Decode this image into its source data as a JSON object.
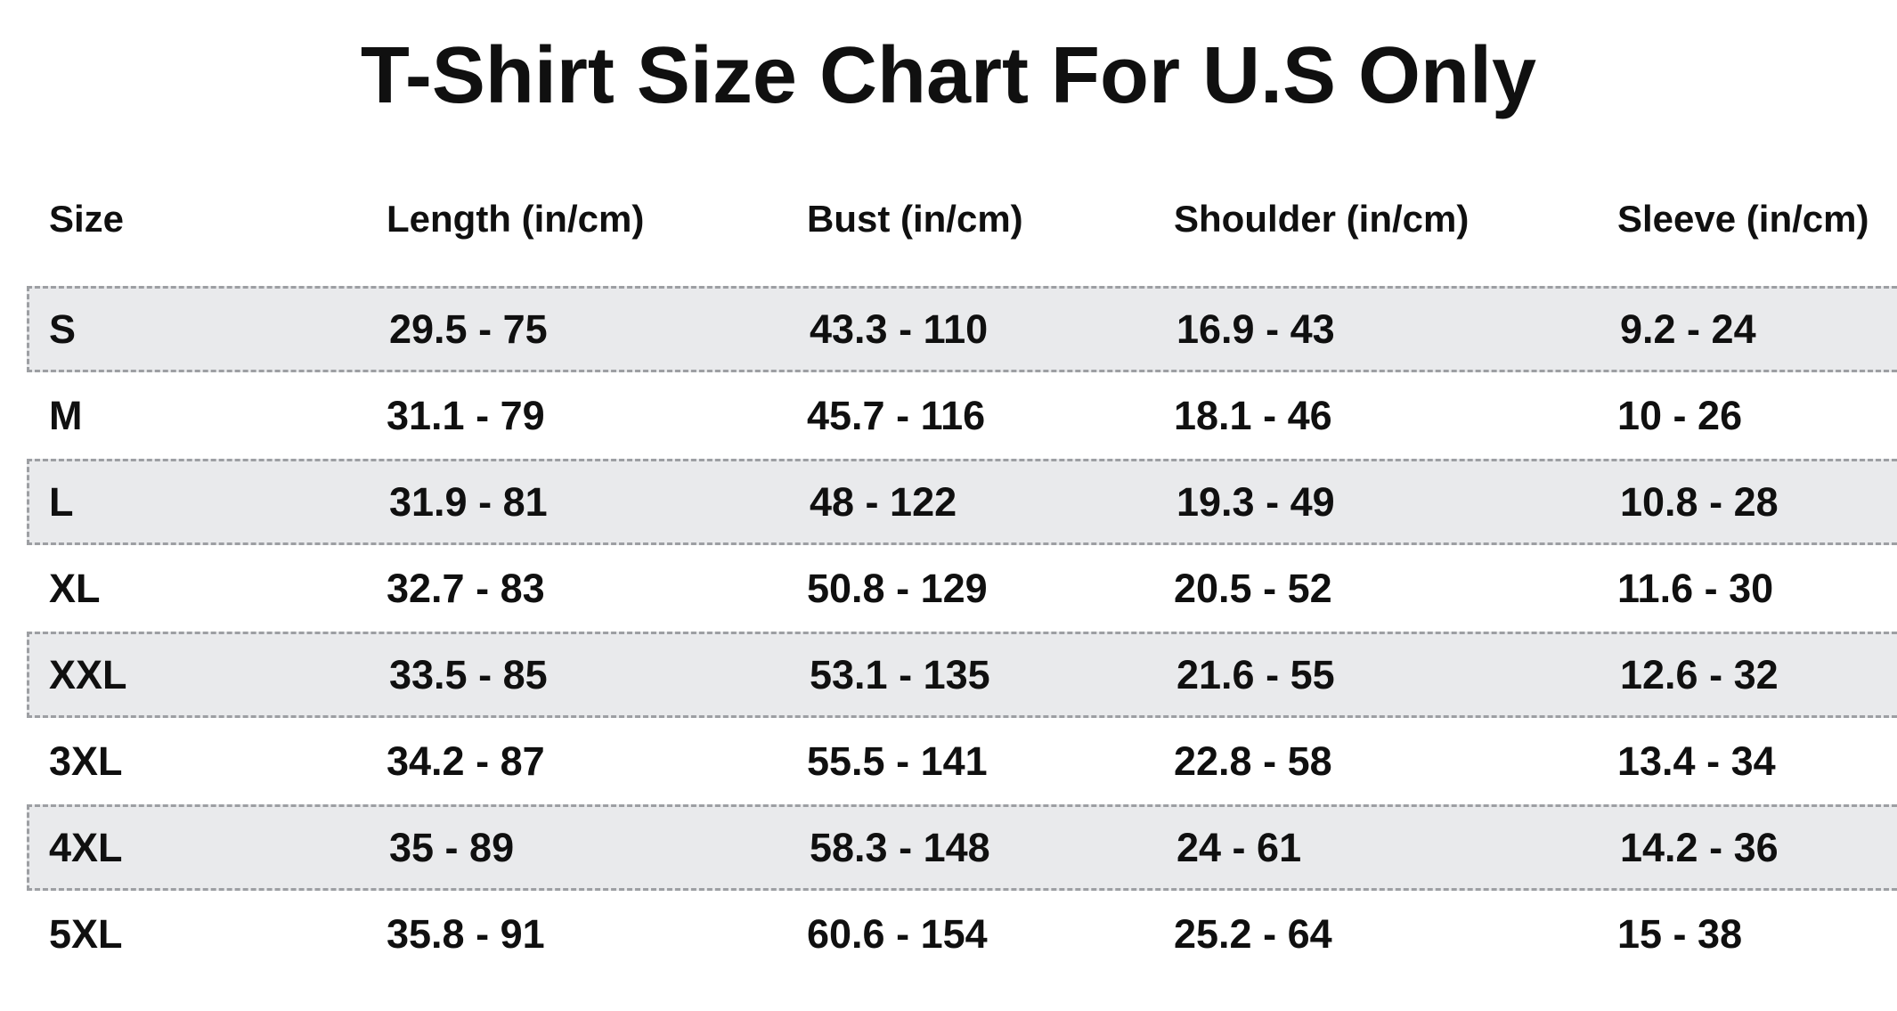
{
  "title": "T-Shirt Size Chart For U.S Only",
  "colors": {
    "stripe_bg": "#e9eaec",
    "dash_border": "#9d9fa3",
    "text": "#101010",
    "background": "#ffffff"
  },
  "chart_data": {
    "type": "table",
    "title": "T-Shirt Size Chart For U.S Only",
    "columns": [
      "Size",
      "Length (in/cm)",
      "Bust (in/cm)",
      "Shoulder (in/cm)",
      "Sleeve (in/cm)"
    ],
    "rows": [
      [
        "S",
        "29.5 - 75",
        "43.3 - 110",
        "16.9 - 43",
        "9.2 - 24"
      ],
      [
        "M",
        "31.1 - 79",
        "45.7 - 116",
        "18.1 - 46",
        "10 - 26"
      ],
      [
        "L",
        "31.9 - 81",
        "48 - 122",
        "19.3 - 49",
        "10.8 - 28"
      ],
      [
        "XL",
        "32.7 - 83",
        "50.8 - 129",
        "20.5 - 52",
        "11.6 - 30"
      ],
      [
        "XXL",
        "33.5 - 85",
        "53.1 - 135",
        "21.6 - 55",
        "12.6 - 32"
      ],
      [
        "3XL",
        "34.2 - 87",
        "55.5 - 141",
        "22.8 - 58",
        "13.4 - 34"
      ],
      [
        "4XL",
        "35 - 89",
        "58.3 - 148",
        "24 - 61",
        "14.2 - 36"
      ],
      [
        "5XL",
        "35.8 - 91",
        "60.6 - 154",
        "25.2 - 64",
        "15 - 38"
      ]
    ],
    "layout": {
      "striped_row_indices": [
        0,
        2,
        4,
        6
      ],
      "stripe_style": "dashed-outline-gray-band",
      "grid": "off",
      "units": "inches and centimeters"
    }
  }
}
